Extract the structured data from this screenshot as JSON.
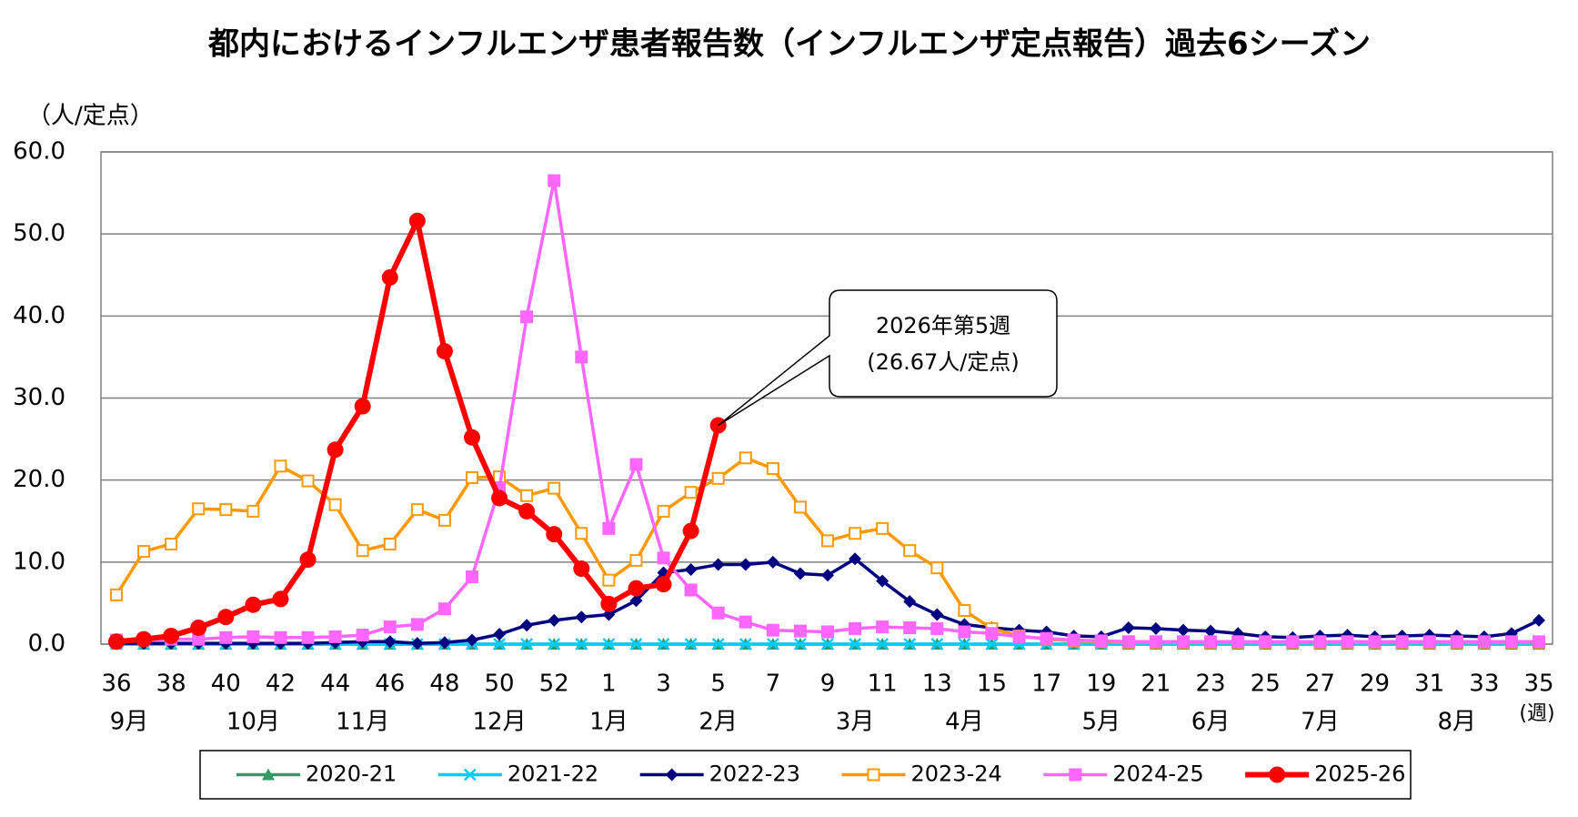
{
  "chart_data": {
    "type": "line",
    "title": "都内におけるインフルエンザ患者報告数（インフルエンザ定点報告）過去6シーズン",
    "y_label": "（人/定点）",
    "x_unit_label": "(週)",
    "categories": [
      "36",
      null,
      "38",
      null,
      "40",
      null,
      "42",
      null,
      "44",
      null,
      "46",
      null,
      "48",
      null,
      "50",
      null,
      "52",
      null,
      "1",
      null,
      "3",
      null,
      "5",
      null,
      "7",
      null,
      "9",
      null,
      "11",
      null,
      "13",
      null,
      "15",
      null,
      "17",
      null,
      "19",
      null,
      "21",
      null,
      "23",
      null,
      "25",
      null,
      "27",
      null,
      "29",
      null,
      "31",
      null,
      "33",
      null,
      "35"
    ],
    "months": [
      "9月",
      null,
      null,
      null,
      null,
      "10月",
      null,
      null,
      null,
      "11月",
      null,
      null,
      null,
      null,
      "12月",
      null,
      null,
      null,
      "1月",
      null,
      null,
      null,
      "2月",
      null,
      null,
      null,
      null,
      "3月",
      null,
      null,
      null,
      "4月",
      null,
      null,
      null,
      null,
      "5月",
      null,
      null,
      null,
      "6月",
      null,
      null,
      null,
      "7月",
      null,
      null,
      null,
      null,
      "8月",
      null,
      null,
      null
    ],
    "ylim": [
      0,
      60
    ],
    "yticks": [
      {
        "value": 0,
        "label": "0.0"
      },
      {
        "value": 10,
        "label": "10.0"
      },
      {
        "value": 20,
        "label": "20.0"
      },
      {
        "value": 30,
        "label": "30.0"
      },
      {
        "value": 40,
        "label": "40.0"
      },
      {
        "value": 50,
        "label": "50.0"
      },
      {
        "value": 60,
        "label": "60.0"
      }
    ],
    "grid": true,
    "legend": "bottom",
    "annotation": {
      "lines": [
        "2026年第5週",
        "(26.67人/定点)"
      ],
      "series": 5,
      "index": 22
    },
    "series": [
      {
        "name": "2020-21",
        "color": "#339966",
        "marker": "triangle",
        "values": [
          0,
          0,
          0,
          0,
          0,
          0,
          0,
          0,
          0,
          0,
          0,
          0,
          0,
          0,
          0,
          0,
          0,
          0,
          0,
          0,
          0,
          0,
          0,
          0,
          0,
          0,
          0,
          0,
          0,
          0,
          0,
          0,
          0,
          0,
          0,
          0,
          0,
          0,
          0,
          0,
          0,
          0,
          0,
          0,
          0,
          0,
          0,
          0,
          0,
          0,
          0,
          0,
          0
        ]
      },
      {
        "name": "2021-22",
        "color": "#00ccff",
        "marker": "x",
        "values": [
          0,
          0,
          0,
          0,
          0,
          0,
          0,
          0,
          0,
          0,
          0,
          0,
          0,
          0,
          0,
          0,
          0,
          0,
          0,
          0,
          0,
          0,
          0,
          0,
          0,
          0,
          0,
          0,
          0,
          0,
          0,
          0,
          0,
          0,
          0,
          0,
          0,
          0,
          0,
          0,
          0,
          0,
          0,
          0,
          0,
          0,
          0,
          0,
          0,
          0,
          0,
          0,
          0
        ]
      },
      {
        "name": "2022-23",
        "color": "#000080",
        "marker": "diamond",
        "values": [
          0.1,
          0.1,
          0.1,
          0.1,
          0.1,
          0.1,
          0.1,
          0.1,
          0.2,
          0.3,
          0.3,
          0.1,
          0.2,
          0.5,
          1.2,
          2.3,
          2.9,
          3.3,
          3.6,
          5.3,
          8.7,
          9.1,
          9.7,
          9.7,
          10.0,
          8.6,
          8.4,
          10.4,
          7.7,
          5.2,
          3.6,
          2.4,
          2.0,
          1.7,
          1.5,
          1.0,
          0.9,
          2.0,
          1.9,
          1.7,
          1.6,
          1.3,
          0.9,
          0.8,
          1.0,
          1.1,
          0.9,
          1.0,
          1.1,
          1.0,
          0.9,
          1.3,
          2.9
        ]
      },
      {
        "name": "2023-24",
        "color": "#ff9900",
        "marker": "hollow-square",
        "values": [
          6.0,
          11.3,
          12.2,
          16.5,
          16.4,
          16.2,
          21.7,
          19.9,
          17.0,
          11.4,
          12.2,
          16.4,
          15.1,
          20.3,
          20.4,
          18.1,
          19.0,
          13.5,
          7.8,
          10.2,
          16.2,
          18.5,
          20.2,
          22.7,
          21.4,
          16.7,
          12.6,
          13.5,
          14.1,
          11.4,
          9.3,
          4.1,
          1.9,
          1.0,
          0.6,
          0.4,
          0.3,
          0.2,
          0.2,
          0.2,
          0.2,
          0.2,
          0.2,
          0.2,
          0.2,
          0.2,
          0.2,
          0.2,
          0.2,
          0.2,
          0.2,
          0.2,
          0.2
        ]
      },
      {
        "name": "2024-25",
        "color": "#ff66ff",
        "marker": "square",
        "values": [
          0.5,
          0.5,
          0.6,
          0.6,
          0.8,
          0.9,
          0.8,
          0.8,
          0.9,
          1.1,
          2.1,
          2.4,
          4.3,
          8.2,
          19.0,
          39.9,
          56.5,
          35.0,
          14.1,
          21.9,
          10.5,
          6.6,
          3.8,
          2.7,
          1.7,
          1.6,
          1.5,
          1.9,
          2.1,
          2.0,
          1.9,
          1.5,
          1.3,
          0.9,
          0.7,
          0.5,
          0.4,
          0.3,
          0.3,
          0.3,
          0.3,
          0.3,
          0.3,
          0.3,
          0.3,
          0.3,
          0.3,
          0.3,
          0.3,
          0.3,
          0.3,
          0.3,
          0.3
        ]
      },
      {
        "name": "2025-26",
        "color": "#ff0000",
        "marker": "circle",
        "values": [
          0.3,
          0.6,
          1.0,
          2.0,
          3.3,
          4.8,
          5.5,
          10.3,
          23.7,
          29.0,
          44.7,
          51.6,
          35.7,
          25.2,
          17.8,
          16.2,
          13.4,
          9.2,
          4.9,
          6.8,
          7.3,
          13.8,
          26.67,
          null,
          null,
          null,
          null,
          null,
          null,
          null,
          null,
          null,
          null,
          null,
          null,
          null,
          null,
          null,
          null,
          null,
          null,
          null,
          null,
          null,
          null,
          null,
          null,
          null,
          null,
          null,
          null,
          null,
          null
        ]
      }
    ]
  }
}
